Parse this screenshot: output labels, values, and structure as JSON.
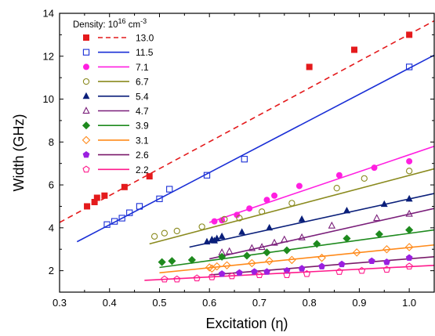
{
  "chart_data": {
    "type": "scatter",
    "xlabel": "Excitation (η)",
    "ylabel": "Width (GHz)",
    "xlim": [
      0.3,
      1.05
    ],
    "ylim": [
      1,
      14
    ],
    "xticks": [
      "0.3",
      "0.4",
      "0.5",
      "0.6",
      "0.7",
      "0.8",
      "0.9",
      "1.0"
    ],
    "yticks": [
      "2",
      "4",
      "6",
      "8",
      "10",
      "12",
      "14"
    ],
    "legend_title_prefix": "Density: 10",
    "legend_title_exp": "16",
    "legend_title_unit": " cm",
    "legend_title_unit_exp": "-3",
    "legend_position": "top-left",
    "grid": false,
    "series": [
      {
        "name": "13.0",
        "marker": "square-filled",
        "color": "#e41a1c",
        "line_color": "#e41a1c",
        "dashed": true,
        "points": [
          [
            0.355,
            5.0
          ],
          [
            0.37,
            5.2
          ],
          [
            0.375,
            5.4
          ],
          [
            0.39,
            5.5
          ],
          [
            0.43,
            5.9
          ],
          [
            0.48,
            6.4
          ],
          [
            0.8,
            11.5
          ],
          [
            0.89,
            12.3
          ],
          [
            1.0,
            13.0
          ]
        ],
        "fit": [
          [
            0.3,
            4.25
          ],
          [
            1.05,
            13.65
          ]
        ]
      },
      {
        "name": "11.5",
        "marker": "square-open",
        "color": "#1a2fd6",
        "line_color": "#1a2fd6",
        "dashed": false,
        "points": [
          [
            0.395,
            4.15
          ],
          [
            0.41,
            4.3
          ],
          [
            0.425,
            4.45
          ],
          [
            0.44,
            4.7
          ],
          [
            0.46,
            5.0
          ],
          [
            0.5,
            5.35
          ],
          [
            0.52,
            5.8
          ],
          [
            0.595,
            6.45
          ],
          [
            0.67,
            7.2
          ],
          [
            1.0,
            11.5
          ]
        ],
        "fit": [
          [
            0.335,
            3.35
          ],
          [
            1.05,
            12.05
          ]
        ]
      },
      {
        "name": "7.1",
        "marker": "circle-filled",
        "color": "#ff1fe0",
        "line_color": "#ff1fe0",
        "dashed": false,
        "points": [
          [
            0.61,
            4.3
          ],
          [
            0.625,
            4.35
          ],
          [
            0.655,
            4.6
          ],
          [
            0.68,
            4.9
          ],
          [
            0.715,
            5.3
          ],
          [
            0.73,
            5.5
          ],
          [
            0.78,
            5.95
          ],
          [
            0.86,
            6.45
          ],
          [
            0.93,
            6.8
          ],
          [
            1.0,
            7.1
          ]
        ],
        "fit": [
          [
            0.6,
            4.25
          ],
          [
            1.05,
            7.8
          ]
        ]
      },
      {
        "name": "6.7",
        "marker": "circle-open",
        "color": "#8a8a1e",
        "line_color": "#8a8a1e",
        "dashed": false,
        "points": [
          [
            0.49,
            3.6
          ],
          [
            0.51,
            3.75
          ],
          [
            0.535,
            3.85
          ],
          [
            0.585,
            4.05
          ],
          [
            0.63,
            4.4
          ],
          [
            0.66,
            4.45
          ],
          [
            0.705,
            4.75
          ],
          [
            0.765,
            5.15
          ],
          [
            0.855,
            5.85
          ],
          [
            0.91,
            6.3
          ],
          [
            1.0,
            6.65
          ]
        ],
        "fit": [
          [
            0.48,
            3.25
          ],
          [
            1.05,
            6.75
          ]
        ]
      },
      {
        "name": "5.4",
        "marker": "triangle-filled",
        "color": "#0a1f7a",
        "line_color": "#0a1f7a",
        "dashed": false,
        "points": [
          [
            0.595,
            3.35
          ],
          [
            0.605,
            3.45
          ],
          [
            0.61,
            3.4
          ],
          [
            0.615,
            3.5
          ],
          [
            0.625,
            3.6
          ],
          [
            0.665,
            3.8
          ],
          [
            0.72,
            4.0
          ],
          [
            0.785,
            4.4
          ],
          [
            0.875,
            4.8
          ],
          [
            0.95,
            5.1
          ],
          [
            1.0,
            5.35
          ]
        ],
        "fit": [
          [
            0.56,
            3.1
          ],
          [
            1.05,
            5.6
          ]
        ]
      },
      {
        "name": "4.7",
        "marker": "triangle-open",
        "color": "#7a1f7a",
        "line_color": "#7a1f7a",
        "dashed": false,
        "points": [
          [
            0.625,
            2.85
          ],
          [
            0.64,
            2.9
          ],
          [
            0.685,
            3.05
          ],
          [
            0.705,
            3.1
          ],
          [
            0.73,
            3.3
          ],
          [
            0.75,
            3.45
          ],
          [
            0.785,
            3.55
          ],
          [
            0.845,
            4.1
          ],
          [
            0.935,
            4.45
          ],
          [
            1.0,
            4.65
          ]
        ],
        "fit": [
          [
            0.6,
            2.55
          ],
          [
            1.05,
            4.9
          ]
        ]
      },
      {
        "name": "3.9",
        "marker": "diamond-filled",
        "color": "#1e8a1e",
        "line_color": "#1e8a1e",
        "dashed": false,
        "points": [
          [
            0.505,
            2.4
          ],
          [
            0.525,
            2.45
          ],
          [
            0.565,
            2.5
          ],
          [
            0.625,
            2.65
          ],
          [
            0.675,
            2.7
          ],
          [
            0.715,
            2.85
          ],
          [
            0.755,
            2.95
          ],
          [
            0.815,
            3.25
          ],
          [
            0.875,
            3.5
          ],
          [
            0.94,
            3.7
          ],
          [
            1.0,
            3.9
          ]
        ],
        "fit": [
          [
            0.5,
            2.15
          ],
          [
            1.05,
            3.9
          ]
        ]
      },
      {
        "name": "3.1",
        "marker": "diamond-open",
        "color": "#ff8a1a",
        "line_color": "#ff8a1a",
        "dashed": false,
        "points": [
          [
            0.6,
            2.15
          ],
          [
            0.605,
            2.1
          ],
          [
            0.615,
            2.2
          ],
          [
            0.635,
            2.25
          ],
          [
            0.685,
            2.35
          ],
          [
            0.72,
            2.45
          ],
          [
            0.765,
            2.5
          ],
          [
            0.825,
            2.6
          ],
          [
            0.895,
            2.85
          ],
          [
            0.955,
            3.0
          ],
          [
            1.0,
            3.1
          ]
        ],
        "fit": [
          [
            0.5,
            1.9
          ],
          [
            1.05,
            3.2
          ]
        ]
      },
      {
        "name": "2.6",
        "marker": "pentagon-filled",
        "color": "#9b1fe0",
        "line_color": "#7a1a6a",
        "dashed": false,
        "points": [
          [
            0.625,
            1.85
          ],
          [
            0.66,
            1.9
          ],
          [
            0.69,
            1.95
          ],
          [
            0.715,
            1.95
          ],
          [
            0.755,
            2.0
          ],
          [
            0.785,
            2.1
          ],
          [
            0.825,
            2.2
          ],
          [
            0.865,
            2.3
          ],
          [
            0.925,
            2.45
          ],
          [
            0.955,
            2.4
          ],
          [
            1.0,
            2.6
          ]
        ],
        "fit": [
          [
            0.6,
            1.8
          ],
          [
            1.05,
            2.65
          ]
        ]
      },
      {
        "name": "2.2",
        "marker": "pentagon-open",
        "color": "#ff1a8c",
        "line_color": "#ff1a8c",
        "dashed": false,
        "points": [
          [
            0.51,
            1.6
          ],
          [
            0.535,
            1.6
          ],
          [
            0.575,
            1.65
          ],
          [
            0.605,
            1.7
          ],
          [
            0.645,
            1.75
          ],
          [
            0.7,
            1.8
          ],
          [
            0.755,
            1.8
          ],
          [
            0.795,
            1.85
          ],
          [
            0.86,
            1.95
          ],
          [
            0.905,
            2.0
          ],
          [
            0.955,
            2.05
          ],
          [
            1.0,
            2.2
          ]
        ],
        "fit": [
          [
            0.47,
            1.55
          ],
          [
            1.05,
            2.25
          ]
        ]
      }
    ]
  }
}
